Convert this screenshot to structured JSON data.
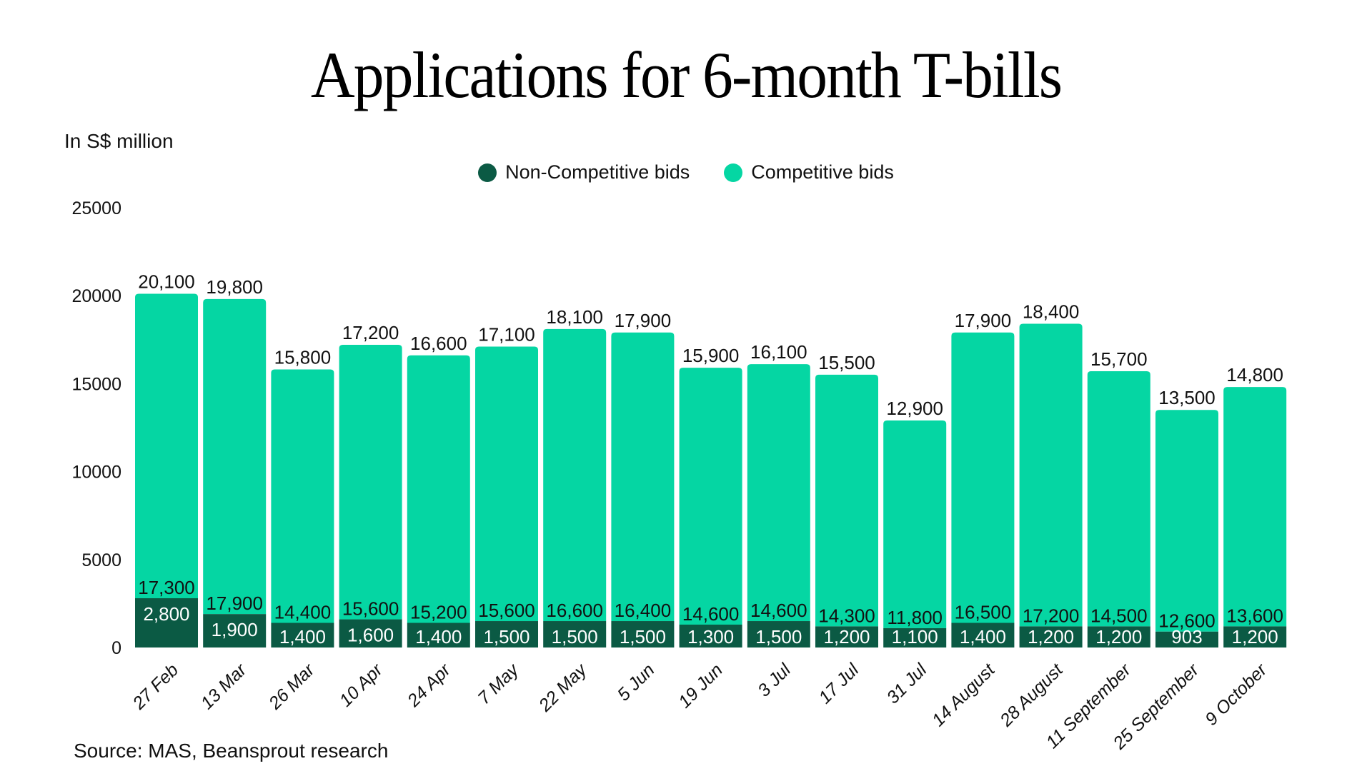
{
  "colors": {
    "non_competitive": "#0B5A44",
    "competitive": "#05D6A3"
  },
  "chart_data": {
    "type": "bar",
    "stacked": true,
    "title": "Applications for 6-month T-bills",
    "ylabel": "In S$ million",
    "xlabel": "",
    "ylim": [
      0,
      25000
    ],
    "yticks": [
      0,
      5000,
      10000,
      15000,
      20000,
      25000
    ],
    "ytick_labels": [
      "0",
      "5000",
      "10000",
      "15000",
      "20000",
      "25000"
    ],
    "grid": false,
    "legend_position": "top-center",
    "categories": [
      "27 Feb",
      "13 Mar",
      "26 Mar",
      "10 Apr",
      "24 Apr",
      "7 May",
      "22 May",
      "5 Jun",
      "19 Jun",
      "3 Jul",
      "17 Jul",
      "31 Jul",
      "14 August",
      "28 August",
      "11 September",
      "25 September",
      "9 October"
    ],
    "series": [
      {
        "name": "Non-Competitive bids",
        "values": [
          2800,
          1900,
          1400,
          1600,
          1400,
          1500,
          1500,
          1500,
          1300,
          1500,
          1200,
          1100,
          1400,
          1200,
          1200,
          903,
          1200
        ],
        "labels": [
          "2,800",
          "1,900",
          "1,400",
          "1,600",
          "1,400",
          "1,500",
          "1,500",
          "1,500",
          "1,300",
          "1,500",
          "1,200",
          "1,100",
          "1,400",
          "1,200",
          "1,200",
          "903",
          "1,200"
        ]
      },
      {
        "name": "Competitive bids",
        "values": [
          17300,
          17900,
          14400,
          15600,
          15200,
          15600,
          16600,
          16400,
          14600,
          14600,
          14300,
          11800,
          16500,
          17200,
          14500,
          12600,
          13600
        ],
        "labels": [
          "17,300",
          "17,900",
          "14,400",
          "15,600",
          "15,200",
          "15,600",
          "16,600",
          "16,400",
          "14,600",
          "14,600",
          "14,300",
          "11,800",
          "16,500",
          "17,200",
          "14,500",
          "12,600",
          "13,600"
        ]
      }
    ],
    "totals": [
      20100,
      19800,
      15800,
      17200,
      16600,
      17100,
      18100,
      17900,
      15900,
      16100,
      15500,
      12900,
      17900,
      18400,
      15700,
      13500,
      14800
    ],
    "total_labels": [
      "20,100",
      "19,800",
      "15,800",
      "17,200",
      "16,600",
      "17,100",
      "18,100",
      "17,900",
      "15,900",
      "16,100",
      "15,500",
      "12,900",
      "17,900",
      "18,400",
      "15,700",
      "13,500",
      "14,800"
    ],
    "source": "Source: MAS, Beansprout research"
  }
}
